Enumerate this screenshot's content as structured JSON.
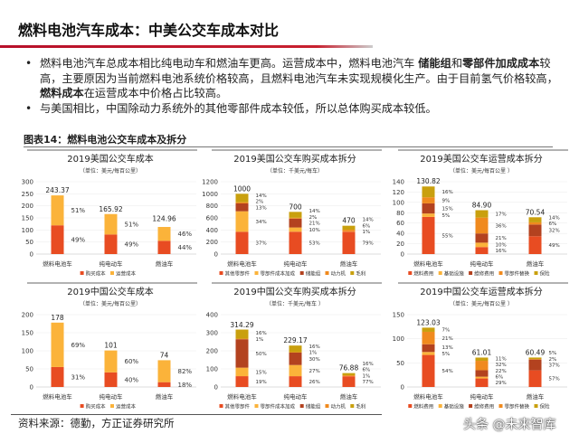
{
  "header": {
    "title": "燃料电池汽车成本：中美公交车成本对比"
  },
  "bullets": [
    {
      "parts": [
        {
          "text": "燃料电池汽车总成本相比纯电动车和燃油车更高。运营成本中，燃料电池汽车 ",
          "bold": false
        },
        {
          "text": "储能组",
          "bold": true
        },
        {
          "text": "和",
          "bold": false
        },
        {
          "text": "零部件加成成本",
          "bold": true
        },
        {
          "text": "较高，主要原因为当前燃料电池系统价格较高，且燃料电池汽车未实现规模化生产。由于目前氢气价格较高，",
          "bold": false
        },
        {
          "text": "燃料成本",
          "bold": true
        },
        {
          "text": "在运营成本中价格占比较高。",
          "bold": false
        }
      ]
    },
    {
      "parts": [
        {
          "text": "与美国相比，中国除动力系统外的其他零部件成本较低，所以总体购买成本较低。",
          "bold": false
        }
      ]
    }
  ],
  "figure_title": "图表14：燃料电池公交车成本及拆分",
  "source": "资料来源：德勤，方正证券研究所",
  "watermark": "头条 @未来智库",
  "colors": {
    "red": "#e84c22",
    "light_orange": "#fbb33a",
    "dark_red": "#b3421f",
    "orange": "#f08a1e",
    "gold": "#c9a00e",
    "accent_rule": "#c8202f"
  },
  "chart_data": [
    {
      "type": "bar",
      "stacked": true,
      "title": "2019美国公交车成本",
      "unit": "（单位：美元/每百公里）",
      "ylim": [
        0,
        300
      ],
      "yticks": [
        0,
        50,
        100,
        150,
        200,
        250,
        300
      ],
      "categories": [
        "燃料电池车",
        "纯电动车",
        "燃油车"
      ],
      "totals": [
        243.37,
        165.92,
        124.96
      ],
      "total_labels": [
        "243.37",
        "165.92",
        "124.96"
      ],
      "series": [
        {
          "name": "购买成本",
          "color": "#e84c22",
          "shares_pct": [
            49,
            49,
            44
          ]
        },
        {
          "name": "运营成本",
          "color": "#fbb33a",
          "shares_pct": [
            51,
            51,
            46
          ]
        }
      ],
      "legend": "bottom"
    },
    {
      "type": "bar",
      "stacked": true,
      "title": "2019美国公交车购买成本拆分",
      "unit": "（单位：千美元/每车）",
      "ylim": [
        0,
        1200
      ],
      "yticks": [
        0,
        200,
        400,
        600,
        800,
        1000,
        1200
      ],
      "categories": [
        "燃料电池车",
        "纯电动车",
        "燃油车"
      ],
      "totals": [
        1000,
        700,
        470
      ],
      "total_labels": [
        "1000",
        "700",
        "470"
      ],
      "series": [
        {
          "name": "其他零部件",
          "color": "#e84c22",
          "shares_pct": [
            37,
            53,
            79
          ]
        },
        {
          "name": "零部件成本加成",
          "color": "#fbb33a",
          "shares_pct": [
            34,
            10,
            1
          ]
        },
        {
          "name": "储能组",
          "color": "#b3421f",
          "shares_pct": [
            13,
            21,
            0
          ]
        },
        {
          "name": "动力机",
          "color": "#f08a1e",
          "shares_pct": [
            2,
            2,
            6
          ]
        },
        {
          "name": "毛利",
          "color": "#c9a00e",
          "shares_pct": [
            14,
            14,
            14
          ]
        }
      ],
      "legend": "bottom"
    },
    {
      "type": "bar",
      "stacked": true,
      "title": "2019美国公交车运营成本拆分",
      "unit": "（单位：美元/每百公里 ）",
      "ylim": [
        0,
        140
      ],
      "yticks": [
        0,
        20,
        40,
        60,
        80,
        100,
        120,
        140
      ],
      "categories": [
        "燃料电池车",
        "纯电动车",
        "燃油车"
      ],
      "totals": [
        130.82,
        84.9,
        70.54
      ],
      "total_labels": [
        "130.82",
        "84.90",
        "70.54"
      ],
      "series": [
        {
          "name": "燃料费用",
          "color": "#e84c22",
          "shares_pct": [
            55,
            16,
            49
          ]
        },
        {
          "name": "基础设施",
          "color": "#fbb33a",
          "shares_pct": [
            5,
            10,
            0
          ]
        },
        {
          "name": "维修费用",
          "color": "#b3421f",
          "shares_pct": [
            15,
            21,
            32
          ]
        },
        {
          "name": "零部件替换",
          "color": "#f08a1e",
          "shares_pct": [
            9,
            36,
            6
          ]
        },
        {
          "name": "保险",
          "color": "#c9a00e",
          "shares_pct": [
            16,
            17,
            14
          ]
        }
      ],
      "legend": "bottom"
    },
    {
      "type": "bar",
      "stacked": true,
      "title": "2019中国公交车成本",
      "unit": "（单位：美元/每百公里）",
      "ylim": [
        0,
        200
      ],
      "yticks": [
        0,
        50,
        100,
        150,
        200
      ],
      "categories": [
        "燃料电池车",
        "纯电动车",
        "燃油车"
      ],
      "totals": [
        178,
        101,
        74
      ],
      "total_labels": [
        "178",
        "101",
        "74"
      ],
      "series": [
        {
          "name": "购买成本",
          "color": "#e84c22",
          "shares_pct": [
            31,
            40,
            18
          ]
        },
        {
          "name": "运营成本",
          "color": "#fbb33a",
          "shares_pct": [
            69,
            60,
            82
          ]
        }
      ],
      "legend": "bottom"
    },
    {
      "type": "bar",
      "stacked": true,
      "title": "2019中国公交车购买成本拆分",
      "unit": "（单位：千美元/每车 ）",
      "ylim": [
        0,
        400
      ],
      "yticks": [
        0,
        100,
        200,
        300,
        400
      ],
      "categories": [
        "燃料电池车",
        "纯电动车",
        "燃油车"
      ],
      "totals": [
        314.29,
        229.17,
        76.88
      ],
      "total_labels": [
        "314.29",
        "229.17",
        "76.88"
      ],
      "series": [
        {
          "name": "其他零部件",
          "color": "#e84c22",
          "shares_pct": [
            19,
            26,
            77
          ]
        },
        {
          "name": "零部件成本加成",
          "color": "#fbb33a",
          "shares_pct": [
            15,
            27,
            1
          ]
        },
        {
          "name": "储能组",
          "color": "#b3421f",
          "shares_pct": [
            50,
            30,
            0
          ]
        },
        {
          "name": "动力机",
          "color": "#f08a1e",
          "shares_pct": [
            1,
            1,
            6
          ]
        },
        {
          "name": "毛利",
          "color": "#c9a00e",
          "shares_pct": [
            16,
            16,
            16
          ]
        }
      ],
      "legend": "bottom"
    },
    {
      "type": "bar",
      "stacked": true,
      "title": "2019中国公交车运营成本拆分",
      "unit": "（单位：美元/每百公里 ）",
      "ylim": [
        0,
        150
      ],
      "yticks": [
        0,
        50,
        100,
        150
      ],
      "categories": [
        "燃料电池车",
        "纯电动车",
        "燃油车"
      ],
      "totals": [
        123.03,
        61.01,
        60.49
      ],
      "total_labels": [
        "123.03",
        "61.01",
        "60.49"
      ],
      "series": [
        {
          "name": "燃料费用",
          "color": "#e84c22",
          "shares_pct": [
            54,
            29,
            57
          ]
        },
        {
          "name": "基础设施",
          "color": "#fbb33a",
          "shares_pct": [
            5,
            6,
            0
          ]
        },
        {
          "name": "维修费用",
          "color": "#b3421f",
          "shares_pct": [
            13,
            22,
            37
          ]
        },
        {
          "name": "零部件替换",
          "color": "#f08a1e",
          "shares_pct": [
            21,
            32,
            2
          ]
        },
        {
          "name": "保险",
          "color": "#c9a00e",
          "shares_pct": [
            7,
            11,
            5
          ]
        }
      ],
      "legend": "bottom"
    }
  ]
}
